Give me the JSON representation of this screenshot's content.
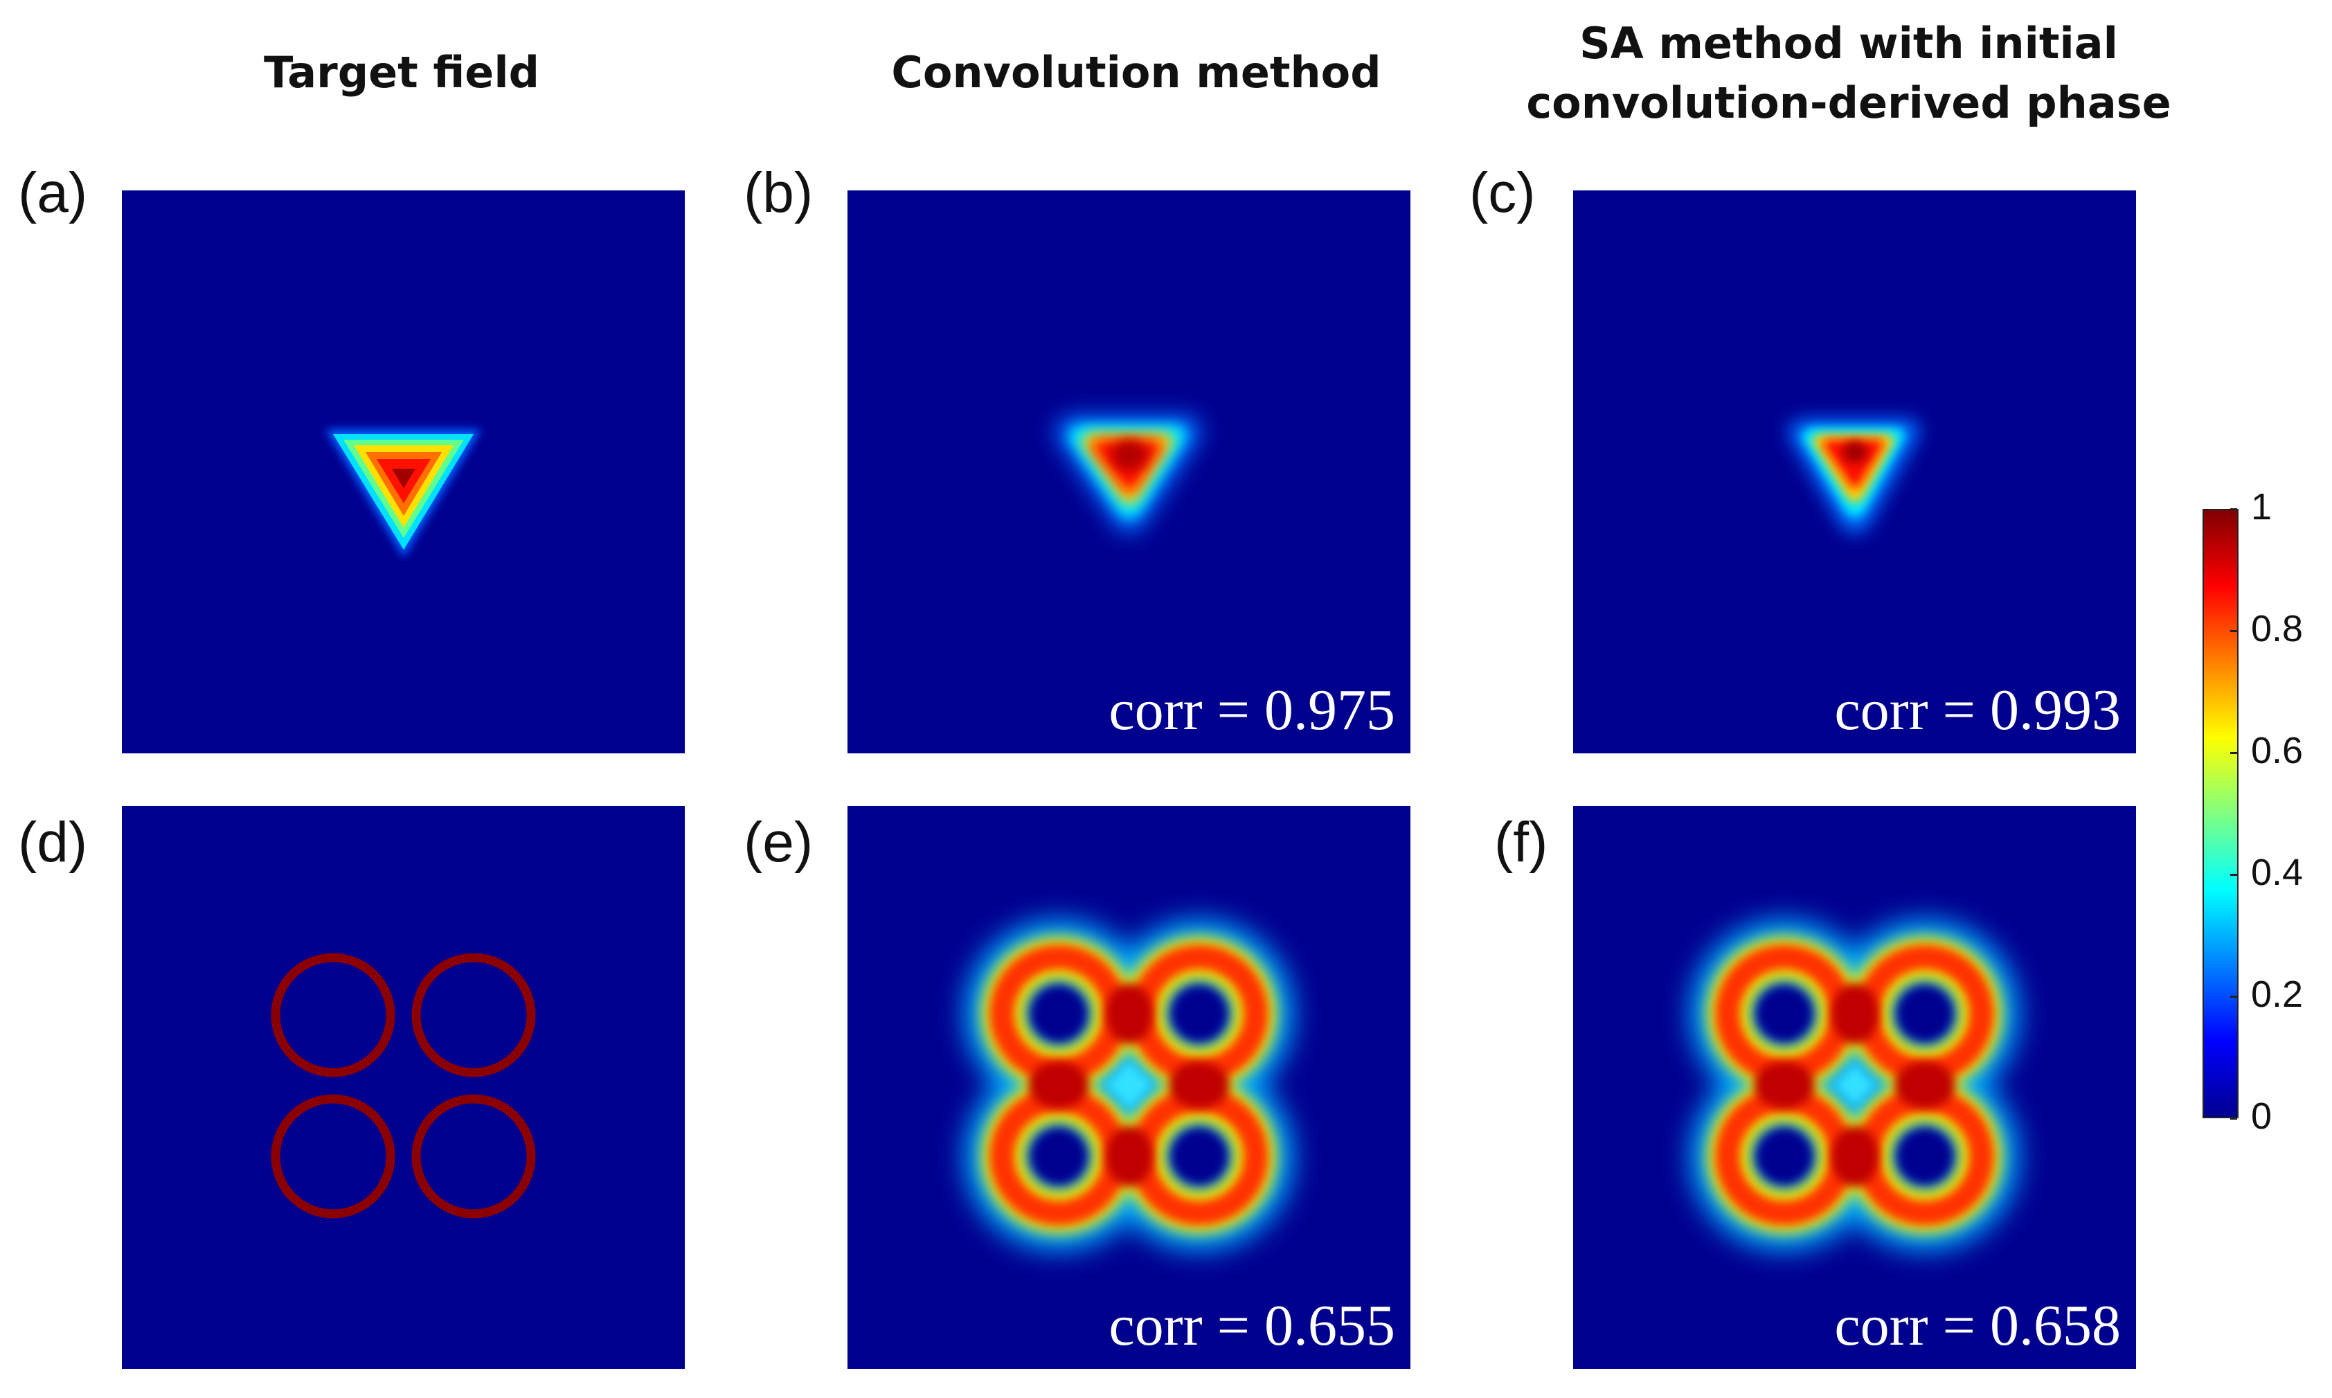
{
  "column_titles": {
    "target": "Target field",
    "convolution": "Convolution method",
    "sa_line1": "SA method with initial",
    "sa_line2": "convolution-derived phase"
  },
  "panels": {
    "a": {
      "label": "(a)"
    },
    "b": {
      "label": "(b)",
      "corr": "corr = 0.975"
    },
    "c": {
      "label": "(c)",
      "corr": "corr = 0.993"
    },
    "d": {
      "label": "(d)"
    },
    "e": {
      "label": "(e)",
      "corr": "corr = 0.655"
    },
    "f": {
      "label": "(f)",
      "corr": "corr = 0.658"
    }
  },
  "chart_data": {
    "type": "heatmap",
    "colormap": "jet",
    "colorbar": {
      "range": [
        0,
        1
      ],
      "ticks": [
        "0",
        "0.2",
        "0.4",
        "0.6",
        "0.8",
        "1"
      ]
    },
    "rows": [
      "triangle field",
      "four-ring field"
    ],
    "columns": [
      "Target field",
      "Convolution method",
      "SA method with initial convolution-derived phase"
    ],
    "correlations": {
      "b": 0.975,
      "c": 0.993,
      "e": 0.655,
      "f": 0.658
    }
  },
  "colors": {
    "background": "#00008f",
    "ring": "#8b0000",
    "jet": [
      "#00008f",
      "#0000ff",
      "#0080ff",
      "#00ffff",
      "#80ff80",
      "#ffff00",
      "#ff8000",
      "#ff0000",
      "#800000"
    ]
  }
}
